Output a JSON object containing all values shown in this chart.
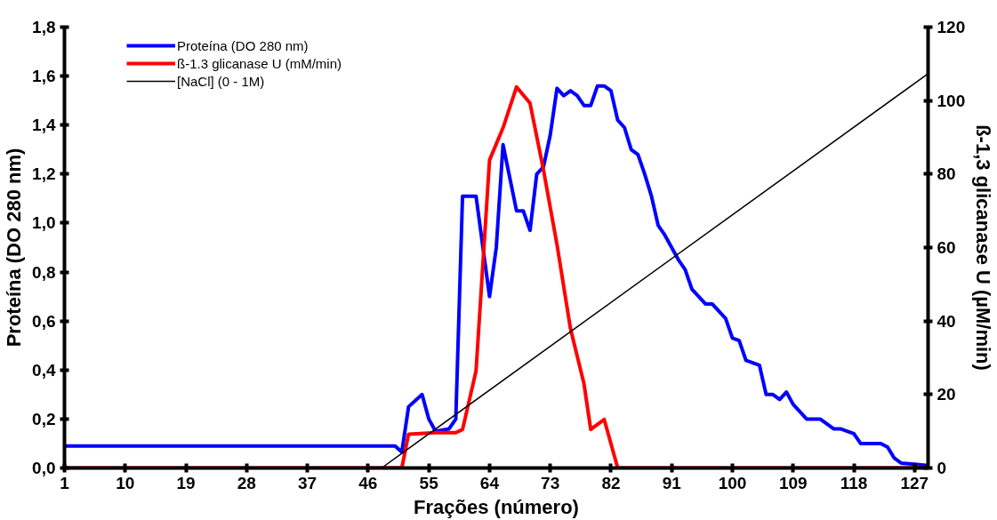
{
  "chart_data": {
    "type": "line",
    "xlabel": "Frações (número)",
    "ylabel": "Proteína (DO 280 nm)",
    "y2label": "ß-1,3 glicanase U (µM/min)",
    "xlim": [
      1,
      129
    ],
    "xticks": [
      1,
      10,
      19,
      28,
      37,
      46,
      55,
      64,
      73,
      82,
      91,
      100,
      109,
      118,
      127
    ],
    "ylim": [
      0,
      1.8
    ],
    "yticks": [
      {
        "value": 0,
        "label": "0,0"
      },
      {
        "value": 0.2,
        "label": "0,2"
      },
      {
        "value": 0.4,
        "label": "0,4"
      },
      {
        "value": 0.6,
        "label": "0,6"
      },
      {
        "value": 0.8,
        "label": "0,8"
      },
      {
        "value": 1.0,
        "label": "1,0"
      },
      {
        "value": 1.2,
        "label": "1,2"
      },
      {
        "value": 1.4,
        "label": "1,4"
      },
      {
        "value": 1.6,
        "label": "1,6"
      },
      {
        "value": 1.8,
        "label": "1,8"
      }
    ],
    "y2lim": [
      0,
      120
    ],
    "y2ticks": [
      0,
      20,
      40,
      60,
      80,
      100,
      120
    ],
    "grid": false,
    "legend": "top left",
    "marker": "none",
    "line_style": "solid",
    "series": [
      {
        "name": "Proteína (DO 280 nm)",
        "color": "#0000ff",
        "x": [
          1,
          50,
          51,
          52,
          54,
          55,
          56,
          58,
          59,
          60,
          62,
          64,
          65,
          66,
          68,
          69,
          70,
          71,
          72,
          73,
          74,
          75,
          76,
          77,
          78,
          79,
          80,
          81,
          82,
          83,
          84,
          85,
          86,
          87,
          88,
          89,
          90,
          92,
          93,
          94,
          96,
          97,
          99,
          100,
          101,
          102,
          104,
          105,
          106,
          107,
          108,
          109,
          111,
          113,
          115,
          116,
          118,
          119,
          122,
          123,
          124,
          125,
          127,
          129
        ],
        "values": [
          0.09,
          0.09,
          0.065,
          0.25,
          0.3,
          0.2,
          0.15,
          0.16,
          0.2,
          1.11,
          1.11,
          0.7,
          0.9,
          1.32,
          1.05,
          1.05,
          0.97,
          1.2,
          1.23,
          1.36,
          1.55,
          1.52,
          1.54,
          1.52,
          1.48,
          1.48,
          1.56,
          1.56,
          1.54,
          1.42,
          1.39,
          1.3,
          1.28,
          1.2,
          1.11,
          0.99,
          0.95,
          0.85,
          0.81,
          0.73,
          0.67,
          0.67,
          0.61,
          0.53,
          0.52,
          0.44,
          0.42,
          0.3,
          0.3,
          0.28,
          0.31,
          0.26,
          0.2,
          0.2,
          0.16,
          0.16,
          0.14,
          0.1,
          0.1,
          0.085,
          0.04,
          0.02,
          0.015,
          0.01
        ]
      },
      {
        "name": "ß-1.3 glicanase U (mM/min)",
        "color": "#ff0000",
        "axis": "y2",
        "x": [
          1,
          51,
          52,
          56,
          59,
          60,
          62,
          64,
          66,
          68,
          70,
          72,
          74,
          76,
          78,
          79,
          81,
          83,
          129
        ],
        "values": [
          0,
          0,
          9.2,
          9.6,
          9.6,
          10.5,
          26.4,
          83.8,
          92.6,
          103.7,
          99.3,
          81.1,
          60.8,
          37.9,
          22.9,
          10.5,
          13.2,
          0,
          0
        ]
      },
      {
        "name": "[NaCl] (0 - 1M)",
        "color": "#000000",
        "x": [
          48,
          129
        ],
        "values": [
          0,
          1.61
        ]
      }
    ]
  }
}
